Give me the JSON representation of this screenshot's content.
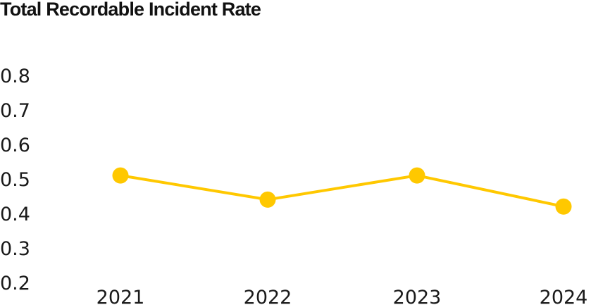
{
  "chart_data": {
    "type": "line",
    "title": "Total Recordable Incident Rate",
    "xlabel": "",
    "ylabel": "",
    "categories": [
      "2021",
      "2022",
      "2023",
      "2024"
    ],
    "series": [
      {
        "values": [
          0.51,
          0.44,
          0.51,
          0.42
        ],
        "color": "#FFC800"
      }
    ],
    "ylim": [
      0.2,
      0.8
    ],
    "yticks": [
      "0.8",
      "0.7",
      "0.6",
      "0.5",
      "0.4",
      "0.3",
      "0.2"
    ],
    "grid": false,
    "markers": true
  }
}
